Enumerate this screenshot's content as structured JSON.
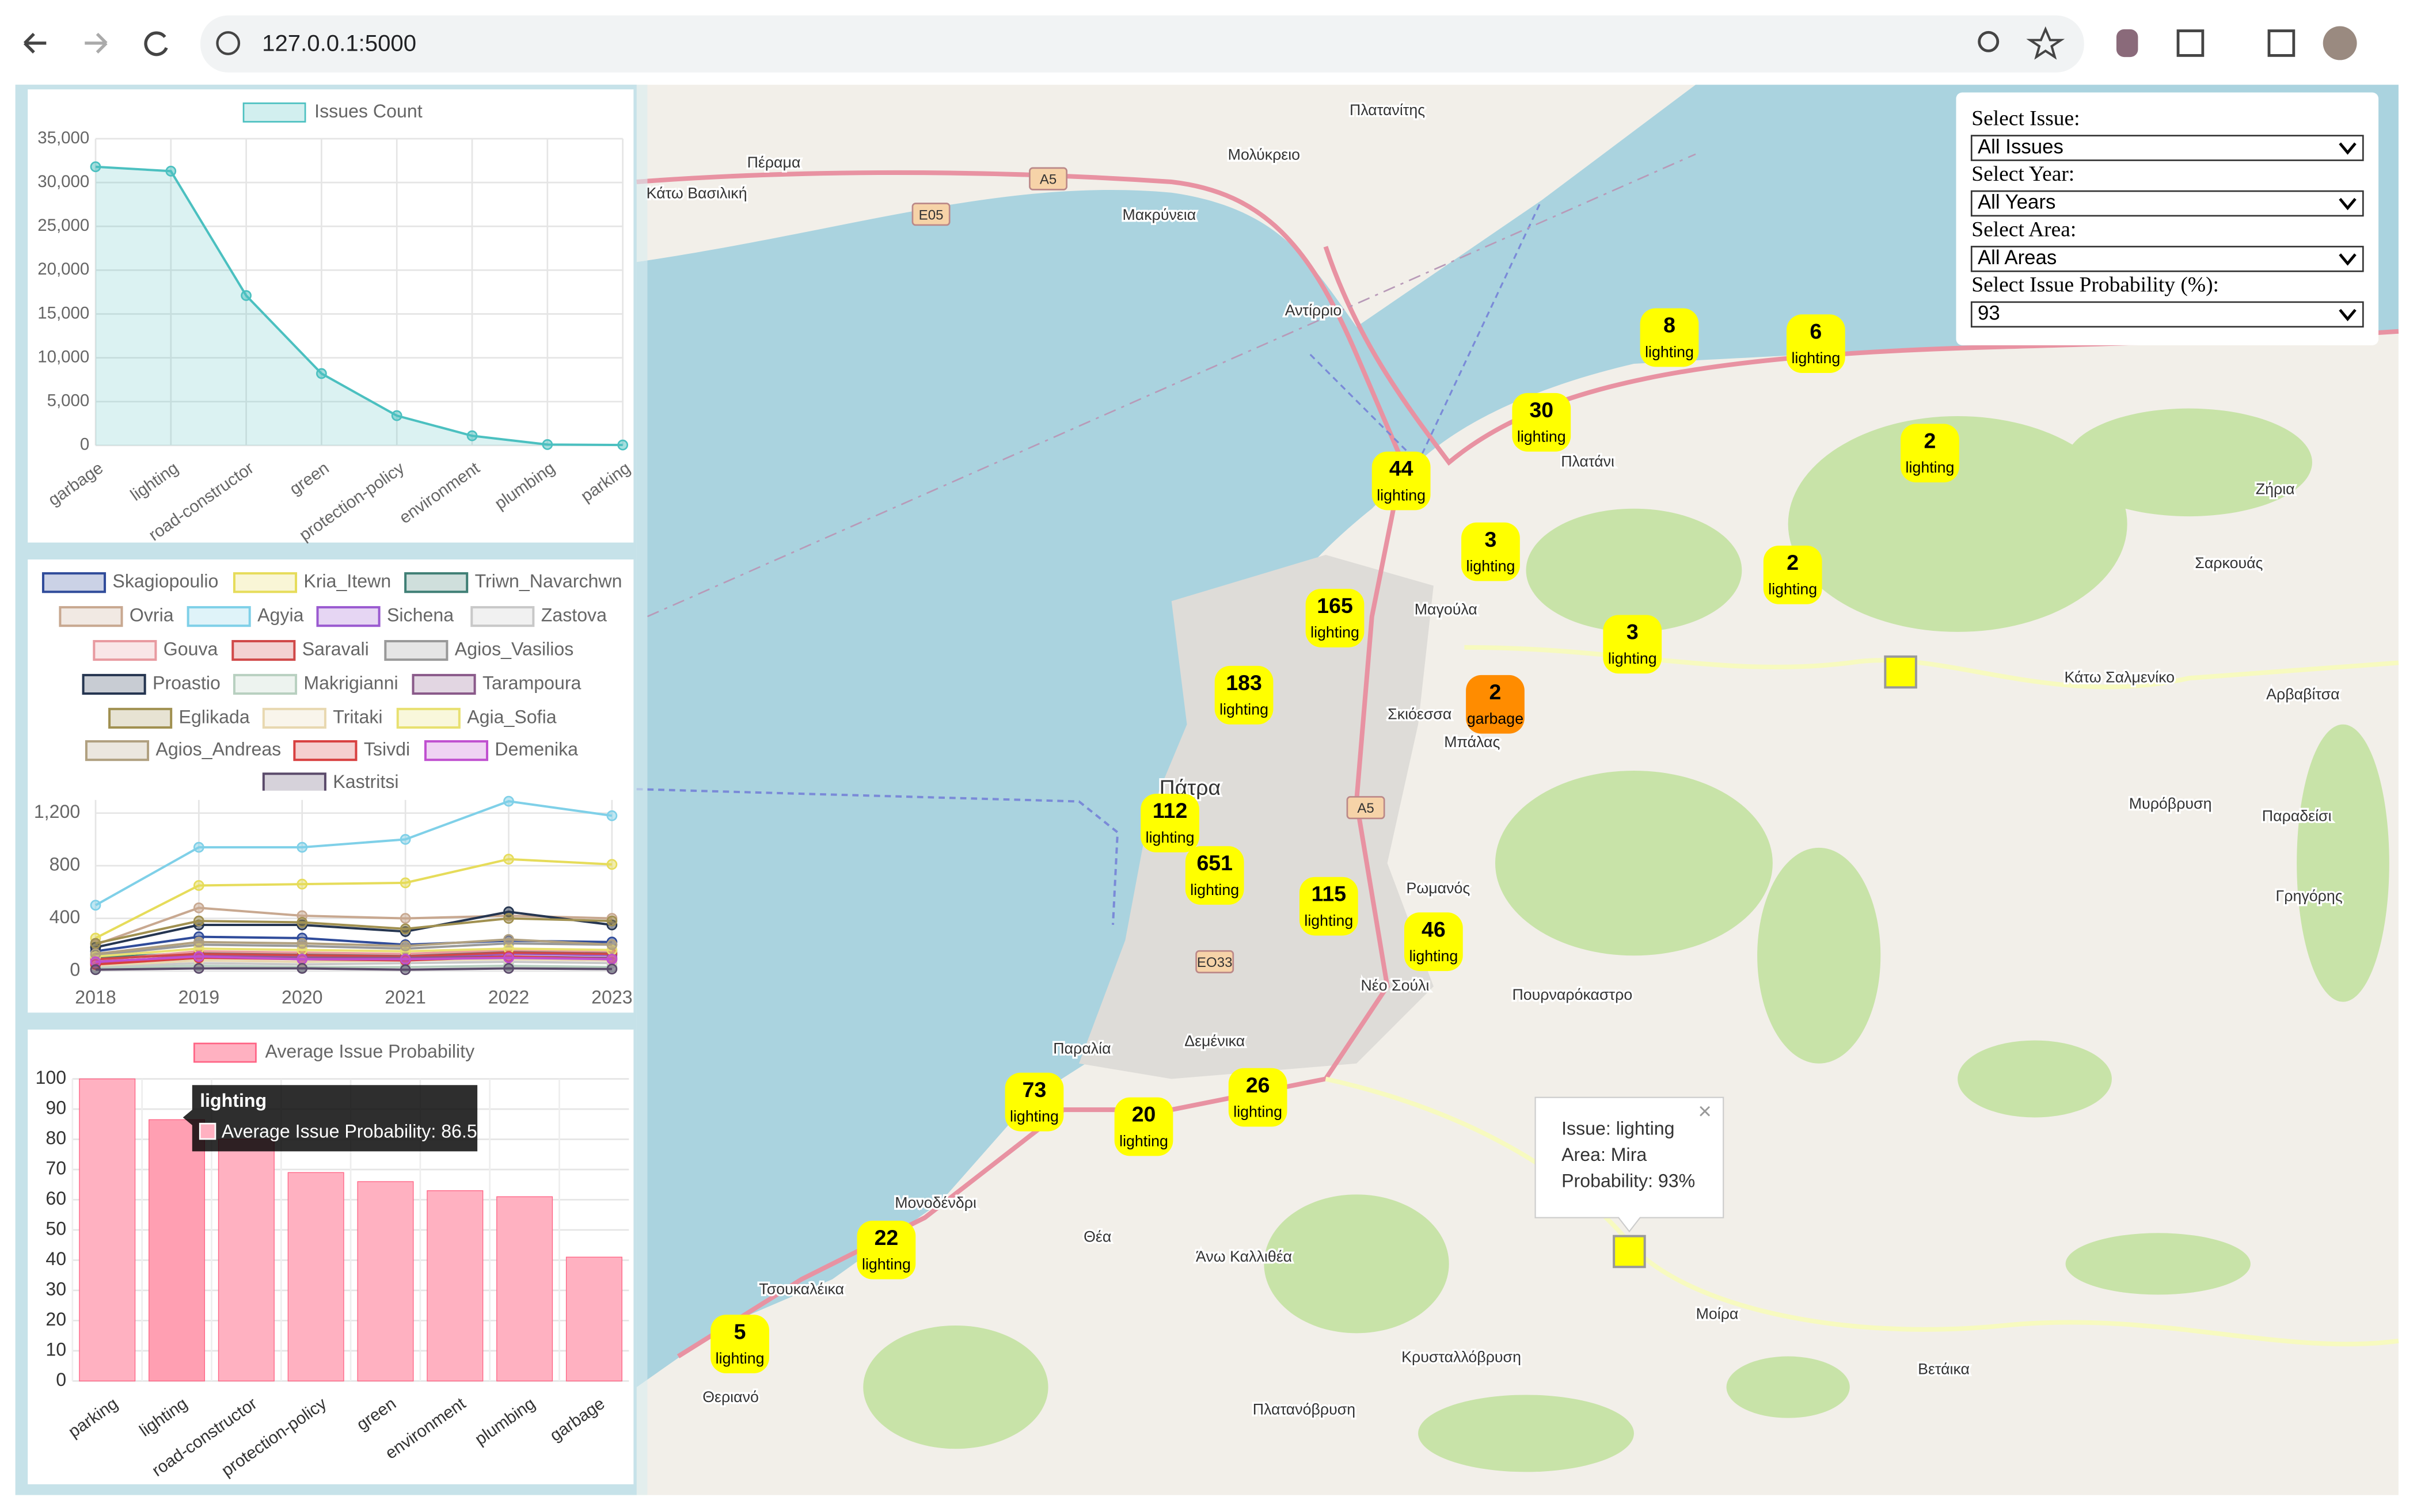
{
  "browser": {
    "url": "127.0.0.1:5000"
  },
  "chart_data": [
    {
      "type": "area",
      "legend": "Issues Count",
      "color": "#4bc0c0",
      "categories": [
        "garbage",
        "lighting",
        "road-constructor",
        "green",
        "protection-policy",
        "environment",
        "plumbing",
        "parking"
      ],
      "values": [
        31800,
        31300,
        17100,
        8200,
        3400,
        1100,
        100,
        50
      ],
      "ylim": [
        0,
        35000
      ],
      "yticks": [
        0,
        {
          "value": 5000,
          "label": "5,000"
        },
        {
          "value": 10000,
          "label": "10,000"
        },
        {
          "value": 15000,
          "label": "15,000"
        },
        {
          "value": 20000,
          "label": "20,000"
        },
        {
          "value": 25000,
          "label": "25,000"
        },
        {
          "value": 30000,
          "label": "30,000"
        },
        {
          "value": 35000,
          "label": "35,000"
        }
      ],
      "grid": true
    },
    {
      "type": "line",
      "x": [
        2018,
        2019,
        2020,
        2021,
        2022,
        2023
      ],
      "xlim": [
        2018,
        2023
      ],
      "xticks": [
        2018,
        2019,
        2020,
        2021,
        2022,
        2023
      ],
      "ylim": [
        0,
        1300
      ],
      "yticks": [
        0,
        400,
        800,
        {
          "value": 1200,
          "label": "1,200"
        }
      ],
      "grid": true,
      "series": [
        {
          "name": "Skagiopoulio",
          "color": "#2f4b9a",
          "values": [
            150,
            260,
            250,
            200,
            230,
            220
          ]
        },
        {
          "name": "Kria_Itewn",
          "color": "#e6dc5a",
          "values": [
            250,
            650,
            660,
            670,
            850,
            810
          ]
        },
        {
          "name": "Triwn_Navarchwn",
          "color": "#3f7f75",
          "values": [
            100,
            140,
            130,
            120,
            150,
            140
          ]
        },
        {
          "name": "Ovria",
          "color": "#c8a890",
          "values": [
            200,
            480,
            420,
            400,
            420,
            400
          ]
        },
        {
          "name": "Agyia",
          "color": "#7fd0e8",
          "values": [
            500,
            940,
            940,
            1000,
            1290,
            1180
          ]
        },
        {
          "name": "Sichena",
          "color": "#9a5ad0",
          "values": [
            60,
            120,
            110,
            100,
            130,
            120
          ]
        },
        {
          "name": "Zastova",
          "color": "#c8c8c8",
          "values": [
            30,
            60,
            50,
            60,
            70,
            60
          ]
        },
        {
          "name": "Gouva",
          "color": "#e89aa0",
          "values": [
            80,
            150,
            140,
            130,
            160,
            150
          ]
        },
        {
          "name": "Saravali",
          "color": "#d04848",
          "values": [
            90,
            130,
            120,
            110,
            140,
            130
          ]
        },
        {
          "name": "Agios_Vasilios",
          "color": "#999999",
          "values": [
            120,
            200,
            190,
            170,
            210,
            200
          ]
        },
        {
          "name": "Proastio",
          "color": "#253550",
          "values": [
            180,
            350,
            350,
            300,
            450,
            350
          ]
        },
        {
          "name": "Makrigianni",
          "color": "#b8d0c0",
          "values": [
            20,
            40,
            30,
            30,
            40,
            30
          ]
        },
        {
          "name": "Tarampoura",
          "color": "#8a5a8a",
          "values": [
            70,
            110,
            100,
            100,
            110,
            100
          ]
        },
        {
          "name": "Eglikada",
          "color": "#a09050",
          "values": [
            210,
            380,
            370,
            320,
            400,
            380
          ]
        },
        {
          "name": "Tritaki",
          "color": "#e8d8b0",
          "values": [
            40,
            80,
            70,
            80,
            90,
            80
          ]
        },
        {
          "name": "Agia_Sofia",
          "color": "#e8e070",
          "values": [
            110,
            170,
            160,
            150,
            170,
            160
          ]
        },
        {
          "name": "Agios_Andreas",
          "color": "#b0a080",
          "values": [
            130,
            220,
            210,
            190,
            240,
            200
          ]
        },
        {
          "name": "Tsivdi",
          "color": "#d84040",
          "values": [
            50,
            100,
            90,
            80,
            110,
            90
          ]
        },
        {
          "name": "Demenika",
          "color": "#c050d0",
          "values": [
            70,
            110,
            90,
            90,
            100,
            90
          ]
        },
        {
          "name": "Kastritsi",
          "color": "#5a4a6a",
          "values": [
            10,
            20,
            20,
            10,
            20,
            15
          ]
        }
      ]
    },
    {
      "type": "bar",
      "legend": "Average Issue Probability",
      "color": "#ffb1c1",
      "categories": [
        "parking",
        "lighting",
        "road-constructor",
        "protection-policy",
        "green",
        "environment",
        "plumbing",
        "garbage"
      ],
      "values": [
        100,
        86.5,
        80,
        69,
        66,
        63,
        61,
        41
      ],
      "ylim": [
        0,
        100
      ],
      "yticks": [
        0,
        10,
        20,
        30,
        40,
        50,
        60,
        70,
        80,
        90,
        100
      ],
      "grid": true,
      "tooltip": {
        "title": "lighting",
        "label": "Average Issue Probability: 86.5"
      }
    }
  ],
  "filters": [
    {
      "label": "Select Issue:",
      "value": "All Issues"
    },
    {
      "label": "Select Year:",
      "value": "All Years"
    },
    {
      "label": "Select Area:",
      "value": "All Areas"
    },
    {
      "label": "Select Issue Probability (%):",
      "value": "93"
    }
  ],
  "map": {
    "markers": [
      {
        "count": "8",
        "issue": "lighting"
      },
      {
        "count": "6",
        "issue": "lighting"
      },
      {
        "count": "30",
        "issue": "lighting"
      },
      {
        "count": "2",
        "issue": "lighting"
      },
      {
        "count": "44",
        "issue": "lighting"
      },
      {
        "count": "3",
        "issue": "lighting"
      },
      {
        "count": "2",
        "issue": "lighting"
      },
      {
        "count": "165",
        "issue": "lighting"
      },
      {
        "count": "3",
        "issue": "lighting"
      },
      {
        "count": "183",
        "issue": "lighting"
      },
      {
        "count": "2",
        "issue": "garbage"
      },
      {
        "count": "112",
        "issue": "lighting"
      },
      {
        "count": "651",
        "issue": "lighting"
      },
      {
        "count": "115",
        "issue": "lighting"
      },
      {
        "count": "46",
        "issue": "lighting"
      },
      {
        "count": "73",
        "issue": "lighting"
      },
      {
        "count": "20",
        "issue": "lighting"
      },
      {
        "count": "26",
        "issue": "lighting"
      },
      {
        "count": "22",
        "issue": "lighting"
      },
      {
        "count": "5",
        "issue": "lighting"
      }
    ],
    "place_labels": [
      "Πλατανίτης",
      "Μολύκρειο",
      "Πέραμα",
      "Κάτω Βασιλική",
      "Μακρύνεια",
      "Αντίρριο",
      "Πλατάνι",
      "Μαγούλα",
      "Σκιόεσσα",
      "Μπάλας",
      "Πάτρα",
      "Ρωμανός",
      "Νέο Σούλι",
      "Πουρναρόκαστρο",
      "Δεμένικα",
      "Παραλία",
      "Θέα",
      "Άνω Καλλιθέα",
      "Μονοδένδρι",
      "Τσουκαλέικα",
      "Θεριανό",
      "Μοίρα",
      "Κρυσταλλόβρυση",
      "Πλατανόβρυση",
      "Ζήρια",
      "Σαρκουάς",
      "Αρβαβίτσα",
      "Μυρόβρυση",
      "Βετάικα",
      "Κάτω Σαλμενίκο",
      "Γρηγόρης",
      "Παραδείσι"
    ],
    "road_labels": [
      "A5",
      "E05",
      "EO33",
      "A5"
    ],
    "popup": {
      "lines": [
        "Issue: lighting",
        "Area: Mira",
        "Probability: 93%"
      ],
      "close": "×"
    }
  }
}
